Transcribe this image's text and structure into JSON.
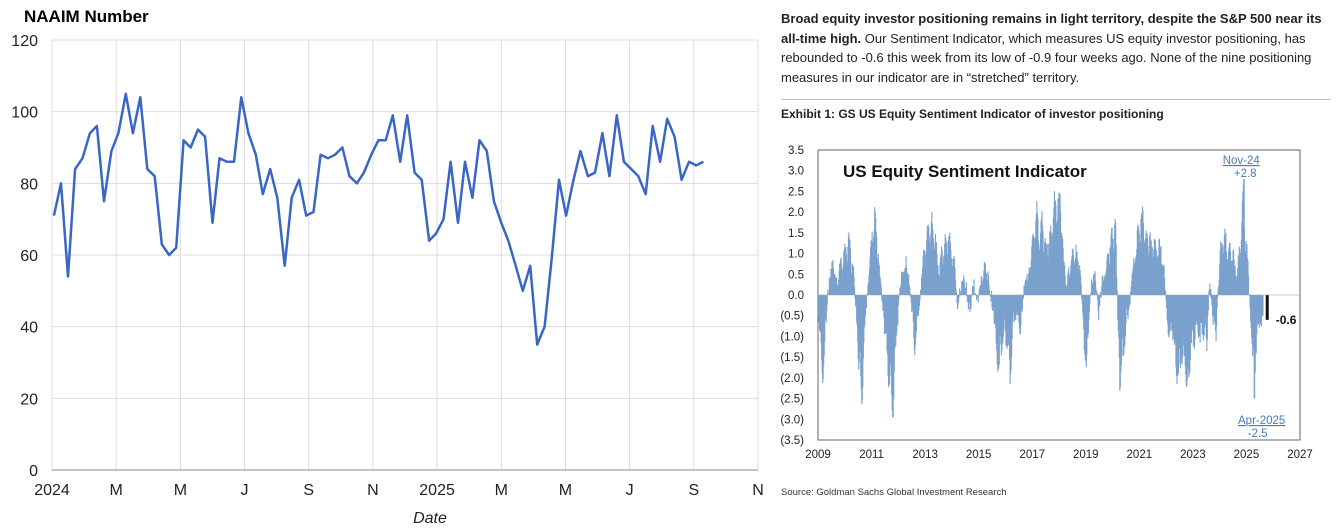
{
  "left": {
    "title": "NAAIM Number",
    "chart_data": {
      "type": "line",
      "title": "NAAIM Number",
      "xlabel": "Date",
      "ylabel": "",
      "ylim": [
        0,
        120
      ],
      "yticks": [
        0,
        20,
        40,
        60,
        80,
        100,
        120
      ],
      "xtick_labels": [
        "2024",
        "M",
        "M",
        "J",
        "S",
        "N",
        "2025",
        "M",
        "M",
        "J",
        "S",
        "N"
      ],
      "xlim_months": [
        0,
        22
      ],
      "grid": true,
      "color": "#3a66c4",
      "series": [
        {
          "name": "NAAIM Number",
          "points": [
            [
              0.06,
              71
            ],
            [
              0.28,
              80
            ],
            [
              0.5,
              54
            ],
            [
              0.72,
              84
            ],
            [
              0.95,
              87
            ],
            [
              1.18,
              94
            ],
            [
              1.4,
              96
            ],
            [
              1.62,
              75
            ],
            [
              1.85,
              89
            ],
            [
              2.07,
              94
            ],
            [
              2.3,
              105
            ],
            [
              2.52,
              94
            ],
            [
              2.75,
              104
            ],
            [
              2.97,
              84
            ],
            [
              3.2,
              82
            ],
            [
              3.42,
              63
            ],
            [
              3.65,
              60
            ],
            [
              3.87,
              62
            ],
            [
              4.1,
              92
            ],
            [
              4.32,
              90
            ],
            [
              4.55,
              95
            ],
            [
              4.77,
              93
            ],
            [
              5.0,
              69
            ],
            [
              5.22,
              87
            ],
            [
              5.45,
              86
            ],
            [
              5.67,
              86
            ],
            [
              5.9,
              104
            ],
            [
              6.12,
              94
            ],
            [
              6.35,
              88
            ],
            [
              6.57,
              77
            ],
            [
              6.8,
              84
            ],
            [
              7.02,
              76
            ],
            [
              7.25,
              57
            ],
            [
              7.47,
              76
            ],
            [
              7.7,
              81
            ],
            [
              7.92,
              71
            ],
            [
              8.15,
              72
            ],
            [
              8.37,
              88
            ],
            [
              8.6,
              87
            ],
            [
              8.82,
              88
            ],
            [
              9.05,
              90
            ],
            [
              9.27,
              82
            ],
            [
              9.5,
              80
            ],
            [
              9.72,
              83
            ],
            [
              9.95,
              88
            ],
            [
              10.17,
              92
            ],
            [
              10.4,
              92
            ],
            [
              10.62,
              99
            ],
            [
              10.85,
              86
            ],
            [
              11.07,
              99
            ],
            [
              11.3,
              83
            ],
            [
              11.52,
              81
            ],
            [
              11.75,
              64
            ],
            [
              11.97,
              66
            ],
            [
              12.2,
              70
            ],
            [
              12.42,
              86
            ],
            [
              12.65,
              69
            ],
            [
              12.87,
              86
            ],
            [
              13.1,
              76
            ],
            [
              13.32,
              92
            ],
            [
              13.55,
              89
            ],
            [
              13.77,
              75
            ],
            [
              14.0,
              69
            ],
            [
              14.22,
              64
            ],
            [
              14.45,
              57
            ],
            [
              14.67,
              50
            ],
            [
              14.9,
              57
            ],
            [
              15.12,
              35
            ],
            [
              15.35,
              40
            ],
            [
              15.57,
              59
            ],
            [
              15.8,
              81
            ],
            [
              16.02,
              71
            ],
            [
              16.25,
              81
            ],
            [
              16.47,
              89
            ],
            [
              16.7,
              82
            ],
            [
              16.92,
              83
            ],
            [
              17.15,
              94
            ],
            [
              17.37,
              82
            ],
            [
              17.6,
              99
            ],
            [
              17.82,
              86
            ],
            [
              18.05,
              84
            ],
            [
              18.27,
              82
            ],
            [
              18.5,
              77
            ],
            [
              18.72,
              96
            ],
            [
              18.95,
              86
            ],
            [
              19.17,
              98
            ],
            [
              19.4,
              93
            ],
            [
              19.62,
              81
            ],
            [
              19.85,
              86
            ],
            [
              20.07,
              85
            ],
            [
              20.3,
              86
            ]
          ]
        }
      ]
    }
  },
  "right": {
    "commentary": {
      "bold": "Broad equity investor positioning remains in light territory, despite the S&P 500 near its all-time high.",
      "text": " Our Sentiment Indicator, which measures US equity investor positioning, has rebounded to -0.6 this week from its low of -0.9 four weeks ago. None of the nine positioning measures in our indicator are in “stretched” territory."
    },
    "exhibit": "Exhibit 1: GS US Equity Sentiment Indicator of investor positioning",
    "source": "Source: Goldman Sachs Global Investment Research",
    "chart_data": {
      "type": "bar",
      "title": "US Equity Sentiment Indicator",
      "xlabel": "",
      "ylabel": "",
      "ylim": [
        -3.5,
        3.5
      ],
      "ytick_labels": [
        "3.5",
        "3.0",
        "2.5",
        "2.0",
        "1.5",
        "1.0",
        "0.5",
        "0.0",
        "(0.5)",
        "(1.0)",
        "(1.5)",
        "(2.0)",
        "(2.5)",
        "(3.0)",
        "(3.5)"
      ],
      "yticks": [
        3.5,
        3.0,
        2.5,
        2.0,
        1.5,
        1.0,
        0.5,
        0.0,
        -0.5,
        -1.0,
        -1.5,
        -2.0,
        -2.5,
        -3.0,
        -3.5
      ],
      "xlim": [
        2009,
        2027
      ],
      "xticks": [
        2009,
        2011,
        2013,
        2015,
        2017,
        2019,
        2021,
        2023,
        2025,
        2027
      ],
      "color": "#7aa0cc",
      "highlight_color": "#111111",
      "annotations": [
        {
          "label": "Nov-24",
          "value": "+2.8",
          "x": 2024.88,
          "y": 2.8
        },
        {
          "label": "Apr-2025",
          "value": "-2.5",
          "x": 2025.27,
          "y": -2.5
        },
        {
          "label": "-0.6",
          "x": 2025.72,
          "y": -0.6
        }
      ],
      "anchor_points": [
        [
          2009.0,
          -0.6
        ],
        [
          2009.08,
          -1.4
        ],
        [
          2009.18,
          -2.2
        ],
        [
          2009.3,
          -0.4
        ],
        [
          2009.4,
          0.4
        ],
        [
          2009.55,
          0.9
        ],
        [
          2009.7,
          0.3
        ],
        [
          2009.85,
          0.9
        ],
        [
          2010.0,
          1.1
        ],
        [
          2010.15,
          1.4
        ],
        [
          2010.3,
          0.6
        ],
        [
          2010.42,
          -0.6
        ],
        [
          2010.52,
          -2.1
        ],
        [
          2010.62,
          -2.7
        ],
        [
          2010.75,
          -0.5
        ],
        [
          2010.9,
          0.8
        ],
        [
          2011.0,
          1.7
        ],
        [
          2011.1,
          2.1
        ],
        [
          2011.25,
          1.0
        ],
        [
          2011.4,
          -0.4
        ],
        [
          2011.55,
          -1.5
        ],
        [
          2011.68,
          -2.6
        ],
        [
          2011.78,
          -3.0
        ],
        [
          2011.9,
          -1.2
        ],
        [
          2012.05,
          0.2
        ],
        [
          2012.2,
          0.9
        ],
        [
          2012.35,
          0.6
        ],
        [
          2012.5,
          -0.6
        ],
        [
          2012.6,
          -1.5
        ],
        [
          2012.75,
          -0.3
        ],
        [
          2012.9,
          0.8
        ],
        [
          2013.05,
          1.6
        ],
        [
          2013.2,
          1.9
        ],
        [
          2013.35,
          1.7
        ],
        [
          2013.48,
          0.6
        ],
        [
          2013.6,
          1.2
        ],
        [
          2013.75,
          1.4
        ],
        [
          2013.9,
          1.5
        ],
        [
          2014.05,
          1.0
        ],
        [
          2014.2,
          -0.3
        ],
        [
          2014.35,
          0.4
        ],
        [
          2014.5,
          0.3
        ],
        [
          2014.65,
          -0.5
        ],
        [
          2014.8,
          0.4
        ],
        [
          2014.95,
          -0.3
        ],
        [
          2015.1,
          0.5
        ],
        [
          2015.25,
          0.8
        ],
        [
          2015.4,
          0.2
        ],
        [
          2015.55,
          -0.5
        ],
        [
          2015.65,
          -1.6
        ],
        [
          2015.75,
          -2.0
        ],
        [
          2015.9,
          -1.0
        ],
        [
          2016.05,
          -1.3
        ],
        [
          2016.15,
          -2.2
        ],
        [
          2016.3,
          -0.6
        ],
        [
          2016.45,
          -0.6
        ],
        [
          2016.55,
          -1.0
        ],
        [
          2016.7,
          0.4
        ],
        [
          2016.85,
          0.5
        ],
        [
          2016.95,
          1.4
        ],
        [
          2017.05,
          1.7
        ],
        [
          2017.15,
          2.3
        ],
        [
          2017.25,
          1.4
        ],
        [
          2017.35,
          2.0
        ],
        [
          2017.5,
          1.3
        ],
        [
          2017.65,
          1.6
        ],
        [
          2017.8,
          2.4
        ],
        [
          2017.95,
          2.5
        ],
        [
          2018.05,
          2.6
        ],
        [
          2018.15,
          1.0
        ],
        [
          2018.25,
          0.2
        ],
        [
          2018.4,
          0.9
        ],
        [
          2018.55,
          1.1
        ],
        [
          2018.7,
          1.1
        ],
        [
          2018.8,
          0.4
        ],
        [
          2018.9,
          -1.1
        ],
        [
          2019.0,
          -2.0
        ],
        [
          2019.08,
          -1.0
        ],
        [
          2019.2,
          0.4
        ],
        [
          2019.35,
          0.5
        ],
        [
          2019.45,
          -0.6
        ],
        [
          2019.6,
          0.4
        ],
        [
          2019.75,
          0.6
        ],
        [
          2019.85,
          1.2
        ],
        [
          2020.0,
          1.7
        ],
        [
          2020.1,
          1.9
        ],
        [
          2020.18,
          -1.0
        ],
        [
          2020.25,
          -2.2
        ],
        [
          2020.35,
          -1.8
        ],
        [
          2020.5,
          -0.7
        ],
        [
          2020.6,
          -0.3
        ],
        [
          2020.75,
          0.7
        ],
        [
          2020.9,
          1.5
        ],
        [
          2021.0,
          2.0
        ],
        [
          2021.1,
          2.2
        ],
        [
          2021.2,
          1.6
        ],
        [
          2021.35,
          1.5
        ],
        [
          2021.5,
          1.4
        ],
        [
          2021.65,
          1.2
        ],
        [
          2021.8,
          1.3
        ],
        [
          2021.9,
          0.6
        ],
        [
          2022.0,
          -0.4
        ],
        [
          2022.1,
          -1.2
        ],
        [
          2022.2,
          -0.8
        ],
        [
          2022.35,
          -1.9
        ],
        [
          2022.45,
          -2.4
        ],
        [
          2022.55,
          -1.5
        ],
        [
          2022.7,
          -2.0
        ],
        [
          2022.8,
          -2.7
        ],
        [
          2022.9,
          -1.2
        ],
        [
          2023.0,
          -1.4
        ],
        [
          2023.1,
          -0.7
        ],
        [
          2023.25,
          -1.2
        ],
        [
          2023.4,
          -0.9
        ],
        [
          2023.5,
          -1.3
        ],
        [
          2023.6,
          0.4
        ],
        [
          2023.75,
          -0.8
        ],
        [
          2023.85,
          -1.0
        ],
        [
          2023.95,
          0.6
        ],
        [
          2024.05,
          1.4
        ],
        [
          2024.15,
          1.6
        ],
        [
          2024.25,
          1.4
        ],
        [
          2024.35,
          1.2
        ],
        [
          2024.5,
          1.0
        ],
        [
          2024.6,
          0.4
        ],
        [
          2024.7,
          1.1
        ],
        [
          2024.8,
          1.8
        ],
        [
          2024.87,
          2.8
        ],
        [
          2024.95,
          1.5
        ],
        [
          2025.05,
          0.7
        ],
        [
          2025.12,
          -0.5
        ],
        [
          2025.2,
          -1.4
        ],
        [
          2025.27,
          -2.5
        ],
        [
          2025.35,
          -1.2
        ],
        [
          2025.42,
          -0.8
        ],
        [
          2025.5,
          -0.7
        ],
        [
          2025.58,
          -0.9
        ],
        [
          2025.65,
          -0.6
        ]
      ]
    }
  }
}
